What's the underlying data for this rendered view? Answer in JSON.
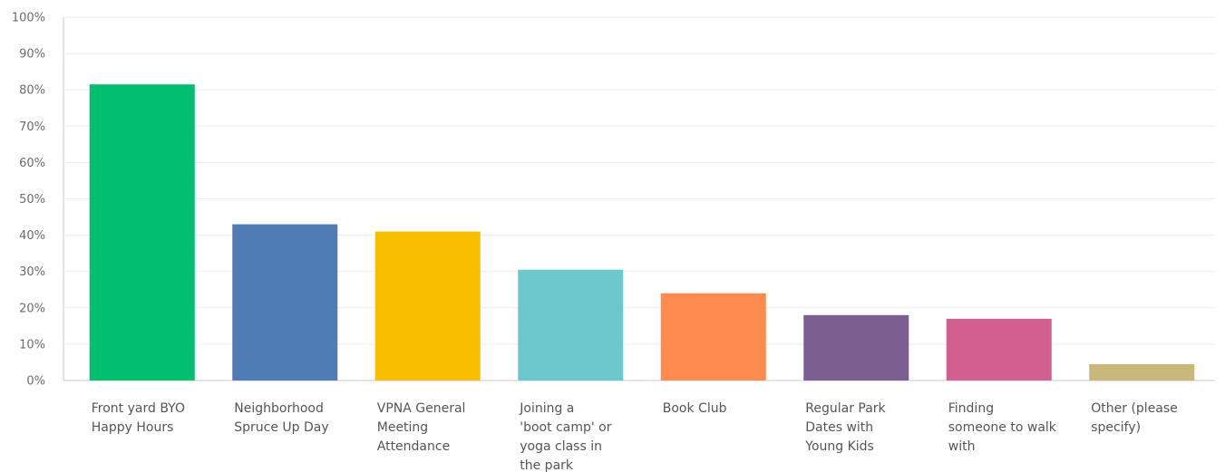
{
  "chart_data": {
    "type": "bar",
    "title": "",
    "xlabel": "",
    "ylabel": "",
    "ylim": [
      0,
      100
    ],
    "y_ticks": [
      {
        "value": 0,
        "label": "0%"
      },
      {
        "value": 10,
        "label": "10%"
      },
      {
        "value": 20,
        "label": "20%"
      },
      {
        "value": 30,
        "label": "30%"
      },
      {
        "value": 40,
        "label": "40%"
      },
      {
        "value": 50,
        "label": "50%"
      },
      {
        "value": 60,
        "label": "60%"
      },
      {
        "value": 70,
        "label": "70%"
      },
      {
        "value": 80,
        "label": "80%"
      },
      {
        "value": 90,
        "label": "90%"
      },
      {
        "value": 100,
        "label": "100%"
      }
    ],
    "grid": true,
    "legend": "none",
    "categories": [
      [
        "Front yard BYO",
        "Happy Hours"
      ],
      [
        "Neighborhood",
        "Spruce Up Day"
      ],
      [
        "VPNA General",
        "Meeting",
        "Attendance"
      ],
      [
        "Joining a",
        "'boot camp' or",
        "yoga class in",
        "the park"
      ],
      [
        "Book Club"
      ],
      [
        "Regular Park",
        "Dates with",
        "Young Kids"
      ],
      [
        "Finding",
        "someone to walk",
        "with"
      ],
      [
        "Other (please",
        "specify)"
      ]
    ],
    "values": [
      81.5,
      43,
      41,
      30.5,
      24,
      18,
      17,
      4.5
    ],
    "colors": [
      "#00bf6f",
      "#507cb6",
      "#f9be00",
      "#6bc8cd",
      "#ff8b4f",
      "#7d5e90",
      "#d25f90",
      "#c8b97a"
    ]
  }
}
